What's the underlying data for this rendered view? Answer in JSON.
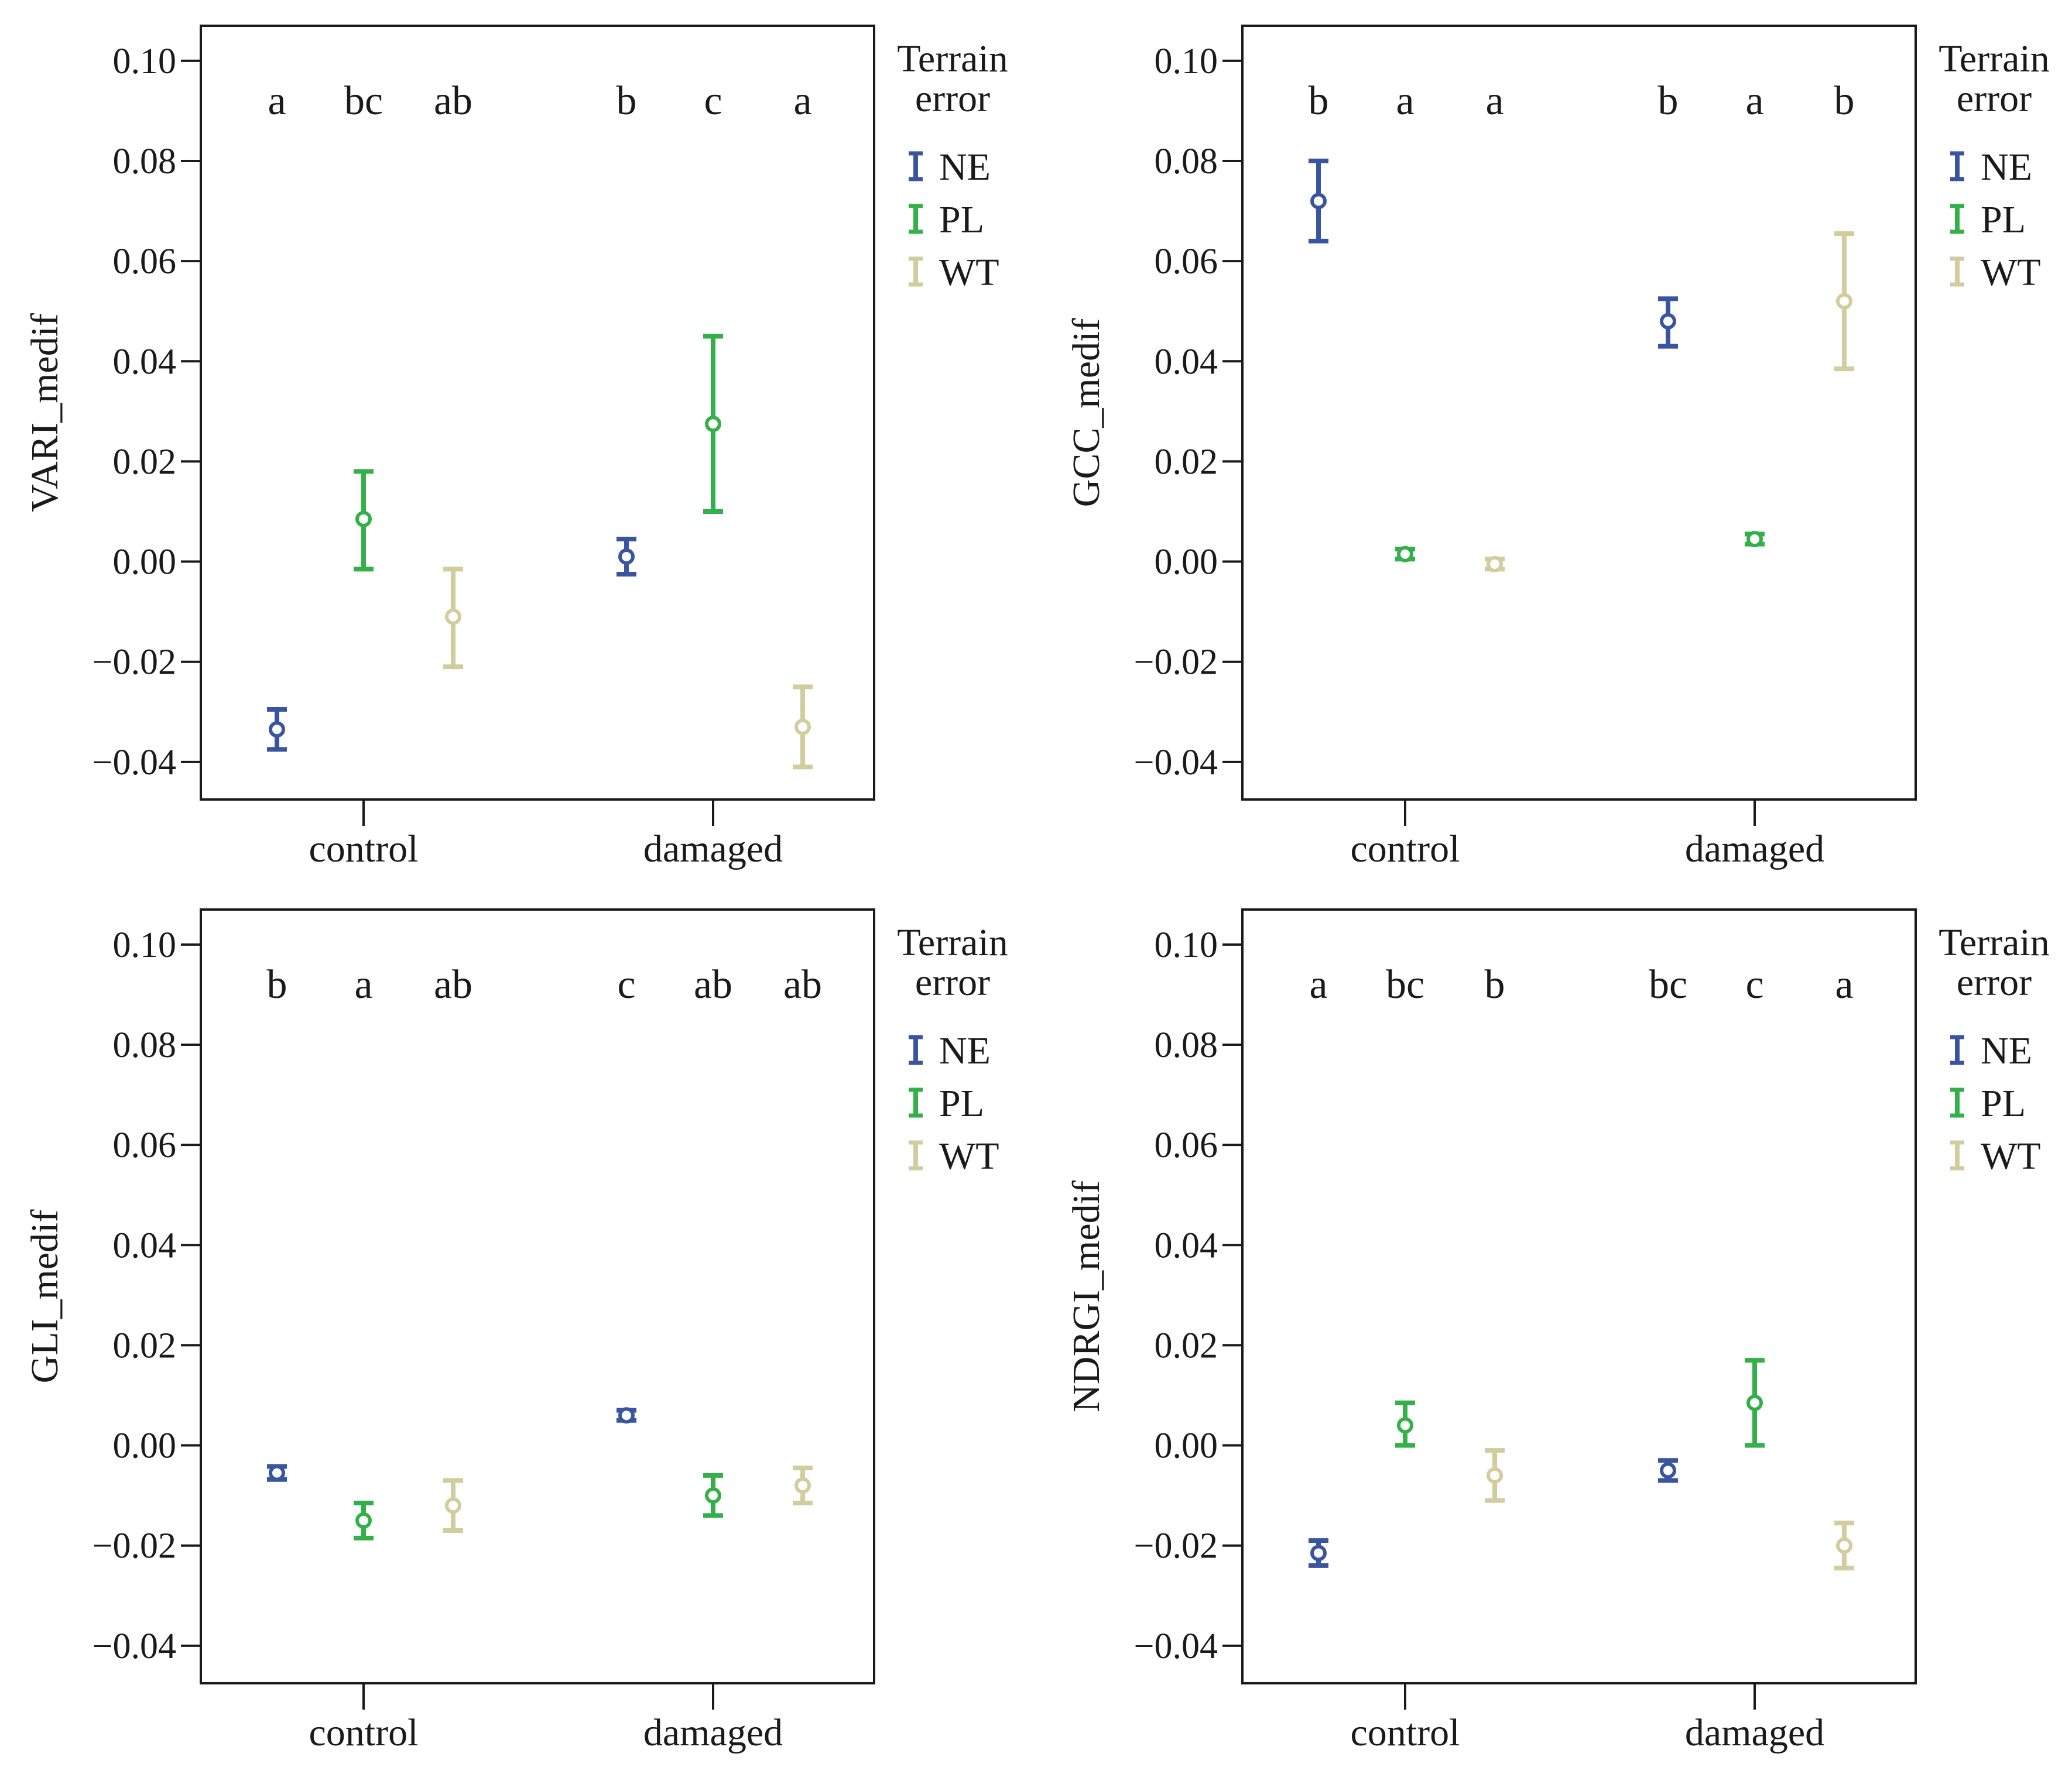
{
  "figure_title": "",
  "colors": {
    "NE": "#3a55a0",
    "PL": "#33b04a",
    "WT": "#d2cc9e",
    "axis": "#1a1a1a"
  },
  "chart_data": [
    {
      "type": "errorbar",
      "panel": "top-left",
      "title": "",
      "xlabel": "",
      "ylabel": "VARI_medif",
      "ylim": [
        -0.0475,
        0.107
      ],
      "yticks": [
        0.1,
        0.08,
        0.06,
        0.04,
        0.02,
        0.0,
        -0.02,
        -0.04
      ],
      "ytick_labels": [
        "0.10",
        "0.08",
        "0.06",
        "0.04",
        "0.02",
        "0.00",
        "−0.02",
        "−0.04"
      ],
      "categories": [
        "control",
        "damaged"
      ],
      "legend_title": [
        "Terrain",
        "error"
      ],
      "series": [
        {
          "name": "NE",
          "color": "#3a55a0",
          "mean": [
            -0.0335,
            0.001
          ],
          "low": [
            -0.0375,
            -0.0025
          ],
          "high": [
            -0.0295,
            0.0045
          ],
          "letters": [
            "a",
            "b"
          ]
        },
        {
          "name": "PL",
          "color": "#33b04a",
          "mean": [
            0.0085,
            0.0275
          ],
          "low": [
            -0.0015,
            0.01
          ],
          "high": [
            0.018,
            0.045
          ],
          "letters": [
            "bc",
            "c"
          ]
        },
        {
          "name": "WT",
          "color": "#d2cc9e",
          "mean": [
            -0.011,
            -0.033
          ],
          "low": [
            -0.021,
            -0.041
          ],
          "high": [
            -0.0015,
            -0.025
          ],
          "letters": [
            "ab",
            "a"
          ]
        }
      ]
    },
    {
      "type": "errorbar",
      "panel": "top-right",
      "title": "",
      "xlabel": "",
      "ylabel": "GCC_medif",
      "ylim": [
        -0.0475,
        0.107
      ],
      "yticks": [
        0.1,
        0.08,
        0.06,
        0.04,
        0.02,
        0.0,
        -0.02,
        -0.04
      ],
      "ytick_labels": [
        "0.10",
        "0.08",
        "0.06",
        "0.04",
        "0.02",
        "0.00",
        "−0.02",
        "−0.04"
      ],
      "categories": [
        "control",
        "damaged"
      ],
      "legend_title": [
        "Terrain",
        "error"
      ],
      "series": [
        {
          "name": "NE",
          "color": "#3a55a0",
          "mean": [
            0.072,
            0.048
          ],
          "low": [
            0.064,
            0.043
          ],
          "high": [
            0.08,
            0.0525
          ],
          "letters": [
            "b",
            "b"
          ]
        },
        {
          "name": "PL",
          "color": "#33b04a",
          "mean": [
            0.0015,
            0.0045
          ],
          "low": [
            0.0005,
            0.0035
          ],
          "high": [
            0.0025,
            0.0055
          ],
          "letters": [
            "a",
            "a"
          ]
        },
        {
          "name": "WT",
          "color": "#d2cc9e",
          "mean": [
            -0.0005,
            0.052
          ],
          "low": [
            -0.0015,
            0.0385
          ],
          "high": [
            0.0005,
            0.0655
          ],
          "letters": [
            "a",
            "b"
          ]
        }
      ]
    },
    {
      "type": "errorbar",
      "panel": "bottom-left",
      "title": "",
      "xlabel": "",
      "ylabel": "GLI_medif",
      "ylim": [
        -0.0475,
        0.107
      ],
      "yticks": [
        0.1,
        0.08,
        0.06,
        0.04,
        0.02,
        0.0,
        -0.02,
        -0.04
      ],
      "ytick_labels": [
        "0.10",
        "0.08",
        "0.06",
        "0.04",
        "0.02",
        "0.00",
        "−0.02",
        "−0.04"
      ],
      "categories": [
        "control",
        "damaged"
      ],
      "legend_title": [
        "Terrain",
        "error"
      ],
      "series": [
        {
          "name": "NE",
          "color": "#3a55a0",
          "mean": [
            -0.0055,
            0.006
          ],
          "low": [
            -0.0068,
            0.005
          ],
          "high": [
            -0.0042,
            0.007
          ],
          "letters": [
            "b",
            "c"
          ]
        },
        {
          "name": "PL",
          "color": "#33b04a",
          "mean": [
            -0.015,
            -0.01
          ],
          "low": [
            -0.0185,
            -0.014
          ],
          "high": [
            -0.0115,
            -0.006
          ],
          "letters": [
            "a",
            "ab"
          ]
        },
        {
          "name": "WT",
          "color": "#d2cc9e",
          "mean": [
            -0.012,
            -0.008
          ],
          "low": [
            -0.017,
            -0.0115
          ],
          "high": [
            -0.007,
            -0.0045
          ],
          "letters": [
            "ab",
            "ab"
          ]
        }
      ]
    },
    {
      "type": "errorbar",
      "panel": "bottom-right",
      "title": "",
      "xlabel": "",
      "ylabel": "NDRGI_medif",
      "ylim": [
        -0.0475,
        0.107
      ],
      "yticks": [
        0.1,
        0.08,
        0.06,
        0.04,
        0.02,
        0.0,
        -0.02,
        -0.04
      ],
      "ytick_labels": [
        "0.10",
        "0.08",
        "0.06",
        "0.04",
        "0.02",
        "0.00",
        "−0.02",
        "−0.04"
      ],
      "categories": [
        "control",
        "damaged"
      ],
      "legend_title": [
        "Terrain",
        "error"
      ],
      "series": [
        {
          "name": "NE",
          "color": "#3a55a0",
          "mean": [
            -0.0215,
            -0.005
          ],
          "low": [
            -0.024,
            -0.007
          ],
          "high": [
            -0.019,
            -0.003
          ],
          "letters": [
            "a",
            "bc"
          ]
        },
        {
          "name": "PL",
          "color": "#33b04a",
          "mean": [
            0.004,
            0.0085
          ],
          "low": [
            0.0,
            0.0
          ],
          "high": [
            0.0085,
            0.017
          ],
          "letters": [
            "bc",
            "c"
          ]
        },
        {
          "name": "WT",
          "color": "#d2cc9e",
          "mean": [
            -0.006,
            -0.02
          ],
          "low": [
            -0.011,
            -0.0245
          ],
          "high": [
            -0.001,
            -0.0155
          ],
          "letters": [
            "b",
            "a"
          ]
        }
      ]
    }
  ]
}
